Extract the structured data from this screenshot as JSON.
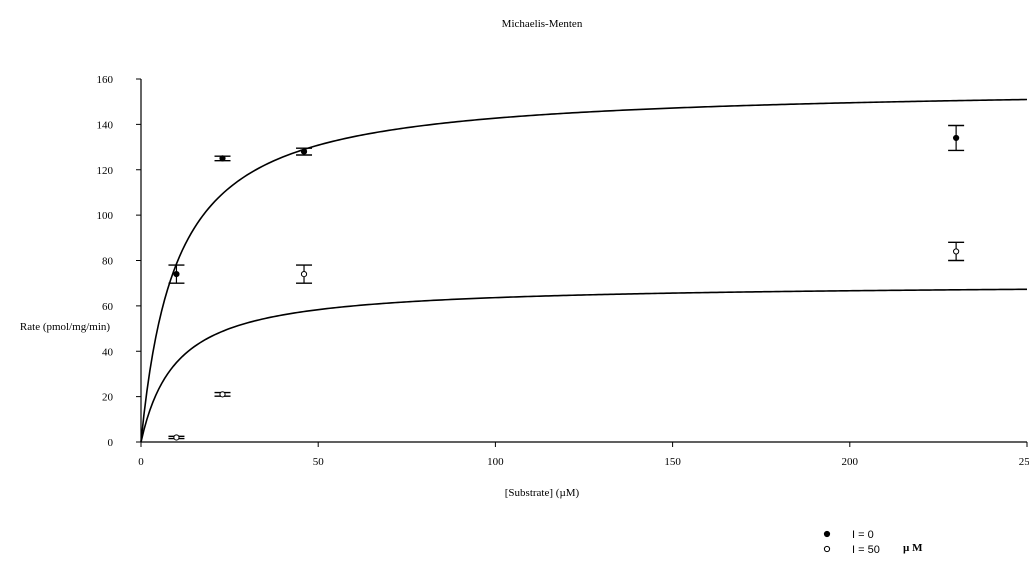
{
  "chart_data": {
    "type": "scatter",
    "title": "Michaelis-Menten",
    "xlabel": "[Substrate] (µM)",
    "ylabel": "Rate (pmol/mg/min)",
    "xlim": [
      0,
      250
    ],
    "ylim": [
      0,
      160
    ],
    "xticks": [
      0,
      50,
      100,
      150,
      200,
      250
    ],
    "yticks": [
      0,
      20,
      40,
      60,
      80,
      100,
      120,
      140,
      160
    ],
    "grid": false,
    "legend_position": "bottom-right",
    "legend_unit": "µ M",
    "series": [
      {
        "name": "I = 0",
        "marker": "filled-circle",
        "points": [
          {
            "x": 10,
            "y": 74,
            "err": 4
          },
          {
            "x": 23,
            "y": 125,
            "err": 1
          },
          {
            "x": 46,
            "y": 128,
            "err": 1.5
          },
          {
            "x": 230,
            "y": 134,
            "err": 5.5
          }
        ],
        "fit": {
          "model": "michaelis-menten",
          "vmax": 157,
          "km": 10
        }
      },
      {
        "name": "I = 50",
        "marker": "open-circle",
        "points": [
          {
            "x": 10,
            "y": 2,
            "err": 0.5
          },
          {
            "x": 23,
            "y": 21,
            "err": 0.8
          },
          {
            "x": 46,
            "y": 74,
            "err": 4
          },
          {
            "x": 230,
            "y": 84,
            "err": 4
          }
        ],
        "fit": {
          "model": "michaelis-menten",
          "vmax": 70,
          "km": 10
        }
      }
    ]
  }
}
